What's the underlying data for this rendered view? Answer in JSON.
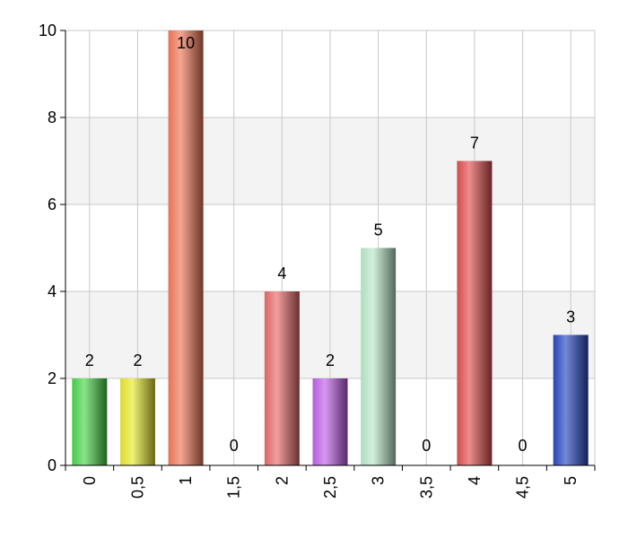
{
  "chart_data": {
    "type": "bar",
    "categories": [
      "0",
      "0,5",
      "1",
      "1,5",
      "2",
      "2,5",
      "3",
      "3,5",
      "4",
      "4,5",
      "5"
    ],
    "values": [
      2,
      2,
      10,
      0,
      4,
      2,
      5,
      0,
      7,
      0,
      3
    ],
    "data_labels": [
      "2",
      "2",
      "10",
      "0",
      "4",
      "2",
      "5",
      "0",
      "7",
      "0",
      "3"
    ],
    "ylim": [
      0,
      10
    ],
    "yticks": [
      0,
      2,
      4,
      6,
      8,
      10
    ],
    "ytick_labels": [
      "0",
      "2",
      "4",
      "6",
      "8",
      "10"
    ],
    "grid": true,
    "legend": "none",
    "bar_colors": [
      "#4ad54a",
      "#e8e830",
      "#f07858",
      "",
      "#e86a6a",
      "#c060e8",
      "#b8e8c8",
      "",
      "#e05050",
      "",
      "#2848c0"
    ],
    "band_color": "#f3f3f3",
    "grid_color": "#c8c8c8"
  }
}
